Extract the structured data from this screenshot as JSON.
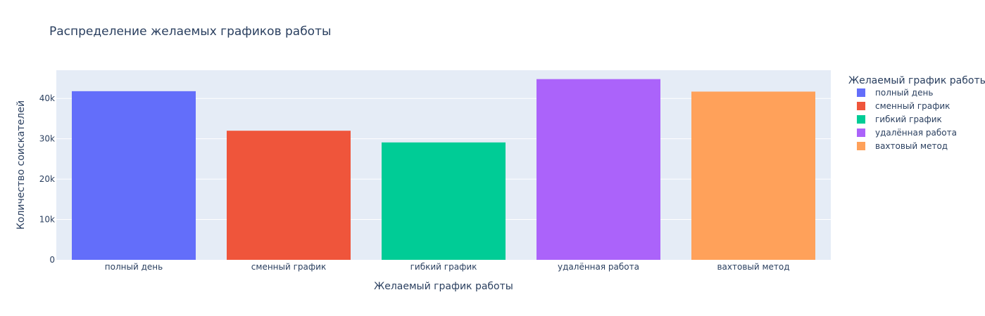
{
  "chart_data": {
    "type": "bar",
    "title": "Распределение желаемых графиков работы",
    "xlabel": "Желаемый график работы",
    "ylabel": "Количество соискателей",
    "legend_title": "Желаемый график работы",
    "legend_position": "right",
    "grid": true,
    "ylim": [
      0,
      47000
    ],
    "y_ticks": [
      0,
      10000,
      20000,
      30000,
      40000
    ],
    "y_tick_labels": [
      "0",
      "10k",
      "20k",
      "30k",
      "40k"
    ],
    "categories": [
      "полный день",
      "сменный график",
      "гибкий график",
      "удалённая работа",
      "вахтовый метод"
    ],
    "series": [
      {
        "name": "полный день",
        "category": "полный день",
        "value": 41800,
        "color": "#636efa"
      },
      {
        "name": "сменный график",
        "category": "сменный график",
        "value": 32000,
        "color": "#ef553b"
      },
      {
        "name": "гибкий график",
        "category": "гибкий график",
        "value": 29100,
        "color": "#00cc96"
      },
      {
        "name": "удалённая работа",
        "category": "удалённая работа",
        "value": 44800,
        "color": "#ab63fa"
      },
      {
        "name": "вахтовый метод",
        "category": "вахтовый метод",
        "value": 41700,
        "color": "#ffa15a"
      }
    ],
    "colors": {
      "plot_bg": "#e5ecf6",
      "grid": "#ffffff",
      "text": "#2a3f5f"
    }
  }
}
